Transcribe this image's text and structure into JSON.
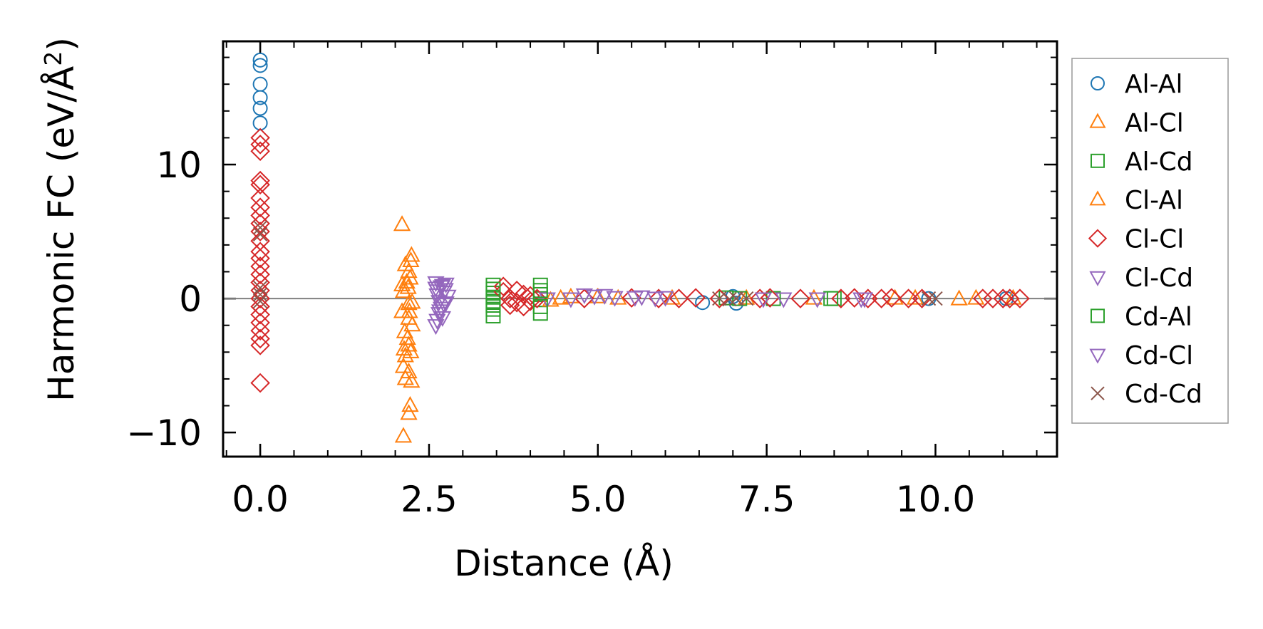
{
  "chart_data": {
    "type": "scatter",
    "title": "",
    "xlabel": "Distance (Å)",
    "ylabel_main": "Harmonic FC (eV/Å",
    "ylabel_sup": "2",
    "ylabel_close": ")",
    "xlim": [
      -0.55,
      11.8
    ],
    "ylim": [
      -11.8,
      19.2
    ],
    "xticks": [
      {
        "value": 0,
        "label": "0.0"
      },
      {
        "value": 2.5,
        "label": "2.5"
      },
      {
        "value": 5,
        "label": "5.0"
      },
      {
        "value": 7.5,
        "label": "7.5"
      },
      {
        "value": 10,
        "label": "10.0"
      }
    ],
    "yticks": [
      {
        "value": -10,
        "label": "−10"
      },
      {
        "value": 0,
        "label": "0"
      },
      {
        "value": 10,
        "label": "10"
      }
    ],
    "x_minor_step": 0.5,
    "y_minor_step": 2,
    "zero_line": 0,
    "legend_position": "outside-right",
    "series": [
      {
        "name": "Al-Al",
        "marker": "circle",
        "color": "#1f77b4",
        "points": [
          [
            0,
            17.8
          ],
          [
            0,
            17.4
          ],
          [
            0,
            16.0
          ],
          [
            0,
            15.0
          ],
          [
            0,
            14.2
          ],
          [
            0,
            13.1
          ],
          [
            6.55,
            -0.3
          ],
          [
            7.05,
            -0.35
          ],
          [
            7.0,
            0.15
          ],
          [
            9.9,
            0.0
          ],
          [
            11.05,
            0.0
          ]
        ]
      },
      {
        "name": "Al-Cl",
        "marker": "triangle-up",
        "color": "#ff7f0e",
        "points": [
          [
            2.1,
            5.5
          ],
          [
            2.12,
            -10.3
          ],
          [
            2.2,
            -8.6
          ],
          [
            2.22,
            -8.0
          ],
          [
            2.15,
            -6.0
          ],
          [
            2.24,
            -6.2
          ],
          [
            2.15,
            -4.3
          ],
          [
            2.23,
            -4.0
          ],
          [
            2.18,
            -3.0
          ],
          [
            2.25,
            -2.0
          ],
          [
            2.1,
            -1.0
          ],
          [
            2.2,
            -0.4
          ],
          [
            2.12,
            0.5
          ],
          [
            2.22,
            1.5
          ],
          [
            2.15,
            2.5
          ],
          [
            2.24,
            3.2
          ],
          [
            2.2,
            2.0
          ],
          [
            2.1,
            1.0
          ],
          [
            2.25,
            -0.3
          ],
          [
            2.2,
            -1.5
          ],
          [
            2.14,
            -2.5
          ],
          [
            2.2,
            -3.5
          ],
          [
            2.12,
            -5.1
          ],
          [
            2.2,
            -5.5
          ],
          [
            4.6,
            0.1
          ],
          [
            5.3,
            0.0
          ],
          [
            7.2,
            0.0
          ],
          [
            9.4,
            0.0
          ],
          [
            10.35,
            -0.05
          ],
          [
            11.15,
            0.0
          ]
        ]
      },
      {
        "name": "Al-Cd",
        "marker": "square",
        "color": "#2ca02c",
        "points": [
          [
            3.45,
            1.0
          ],
          [
            3.45,
            0.4
          ],
          [
            3.45,
            -0.2
          ],
          [
            3.45,
            -0.8
          ],
          [
            3.45,
            -1.3
          ],
          [
            4.15,
            1.0
          ],
          [
            4.15,
            -1.1
          ],
          [
            4.15,
            0.3
          ],
          [
            6.9,
            0.05
          ],
          [
            7.6,
            0.0
          ],
          [
            8.5,
            0.0
          ]
        ]
      },
      {
        "name": "Cl-Al",
        "marker": "triangle-up",
        "color": "#ff7f0e",
        "points": [
          [
            2.17,
            1.2
          ],
          [
            2.21,
            -1.0
          ],
          [
            2.19,
            0.8
          ],
          [
            2.23,
            2.8
          ],
          [
            2.13,
            -3.8
          ],
          [
            4.3,
            -0.15
          ],
          [
            4.45,
            0.0
          ],
          [
            5.0,
            0.1
          ],
          [
            6.1,
            0.0
          ],
          [
            8.2,
            0.0
          ],
          [
            9.7,
            0.0
          ],
          [
            10.6,
            0.0
          ]
        ]
      },
      {
        "name": "Cl-Cl",
        "marker": "diamond",
        "color": "#d62728",
        "points": [
          [
            0,
            12.0
          ],
          [
            0,
            11.5
          ],
          [
            0,
            11.0
          ],
          [
            0,
            8.8
          ],
          [
            0,
            8.5
          ],
          [
            0,
            7.5
          ],
          [
            0,
            6.8
          ],
          [
            0,
            6.2
          ],
          [
            0,
            5.6
          ],
          [
            0,
            5.0
          ],
          [
            0,
            4.3
          ],
          [
            0,
            3.5
          ],
          [
            0,
            3.0
          ],
          [
            0,
            2.4
          ],
          [
            0,
            1.8
          ],
          [
            0,
            1.2
          ],
          [
            0,
            0.6
          ],
          [
            0,
            0.0
          ],
          [
            0,
            -0.6
          ],
          [
            0,
            -1.2
          ],
          [
            0,
            -1.8
          ],
          [
            0,
            -2.4
          ],
          [
            0,
            -3.0
          ],
          [
            0,
            -3.5
          ],
          [
            0,
            -6.3
          ],
          [
            3.6,
            0.9
          ],
          [
            3.6,
            0.5
          ],
          [
            3.7,
            0.0
          ],
          [
            3.7,
            -0.5
          ],
          [
            3.8,
            0.6
          ],
          [
            3.8,
            -0.3
          ],
          [
            3.9,
            0.3
          ],
          [
            3.9,
            -0.6
          ],
          [
            4.0,
            0.2
          ],
          [
            4.0,
            -0.2
          ],
          [
            4.1,
            0.0
          ],
          [
            4.8,
            0.0
          ],
          [
            5.5,
            0.05
          ],
          [
            5.9,
            0.0
          ],
          [
            6.2,
            0.0
          ],
          [
            6.45,
            0.05
          ],
          [
            6.8,
            0.0
          ],
          [
            7.4,
            0.0
          ],
          [
            7.55,
            0.05
          ],
          [
            8.0,
            0.0
          ],
          [
            8.6,
            0.0
          ],
          [
            8.8,
            0.05
          ],
          [
            9.0,
            0.0
          ],
          [
            9.2,
            0.0
          ],
          [
            9.35,
            0.05
          ],
          [
            9.6,
            0.0
          ],
          [
            9.8,
            0.0
          ],
          [
            10.7,
            0.0
          ],
          [
            10.85,
            0.0
          ],
          [
            11.0,
            0.0
          ],
          [
            11.1,
            0.0
          ],
          [
            11.25,
            0.0
          ]
        ]
      },
      {
        "name": "Cl-Cd",
        "marker": "triangle-down",
        "color": "#9467bd",
        "points": [
          [
            2.6,
            1.2
          ],
          [
            2.6,
            0.8
          ],
          [
            2.62,
            0.3
          ],
          [
            2.65,
            -0.2
          ],
          [
            2.68,
            -0.7
          ],
          [
            2.7,
            1.0
          ],
          [
            2.72,
            0.5
          ],
          [
            2.75,
            -0.3
          ],
          [
            2.65,
            -1.1
          ],
          [
            2.62,
            -1.6
          ],
          [
            2.6,
            -2.0
          ],
          [
            2.7,
            -1.4
          ],
          [
            2.75,
            1.1
          ],
          [
            2.78,
            0.2
          ],
          [
            4.25,
            0.0
          ],
          [
            4.8,
            0.3
          ],
          [
            5.1,
            0.25
          ],
          [
            5.65,
            0.15
          ],
          [
            6.0,
            0.1
          ],
          [
            7.75,
            0.0
          ],
          [
            8.9,
            0.0
          ]
        ]
      },
      {
        "name": "Cd-Al",
        "marker": "square",
        "color": "#2ca02c",
        "points": [
          [
            3.45,
            0.7
          ],
          [
            3.45,
            -0.5
          ],
          [
            3.45,
            0.1
          ],
          [
            4.15,
            0.6
          ],
          [
            4.15,
            -0.6
          ],
          [
            7.1,
            0.0
          ],
          [
            8.45,
            0.0
          ]
        ]
      },
      {
        "name": "Cd-Cl",
        "marker": "triangle-down",
        "color": "#9467bd",
        "points": [
          [
            2.62,
            0.6
          ],
          [
            2.68,
            0.9
          ],
          [
            2.72,
            -0.4
          ],
          [
            2.66,
            -0.9
          ],
          [
            2.74,
            0.7
          ],
          [
            4.6,
            0.0
          ],
          [
            4.95,
            0.2
          ],
          [
            5.25,
            0.1
          ],
          [
            5.55,
            0.1
          ],
          [
            5.85,
            0.05
          ],
          [
            7.45,
            0.0
          ],
          [
            8.25,
            0.0
          ],
          [
            8.95,
            0.0
          ]
        ]
      },
      {
        "name": "Cd-Cd",
        "marker": "x",
        "color": "#8c564b",
        "points": [
          [
            0,
            5.3
          ],
          [
            0,
            4.8
          ],
          [
            0,
            0.8
          ],
          [
            0,
            0.3
          ],
          [
            0,
            -0.2
          ],
          [
            6.8,
            0.0
          ],
          [
            6.95,
            -0.05
          ],
          [
            7.05,
            0.0
          ],
          [
            7.2,
            0.0
          ],
          [
            9.9,
            0.0
          ],
          [
            10.0,
            0.0
          ]
        ]
      }
    ]
  }
}
